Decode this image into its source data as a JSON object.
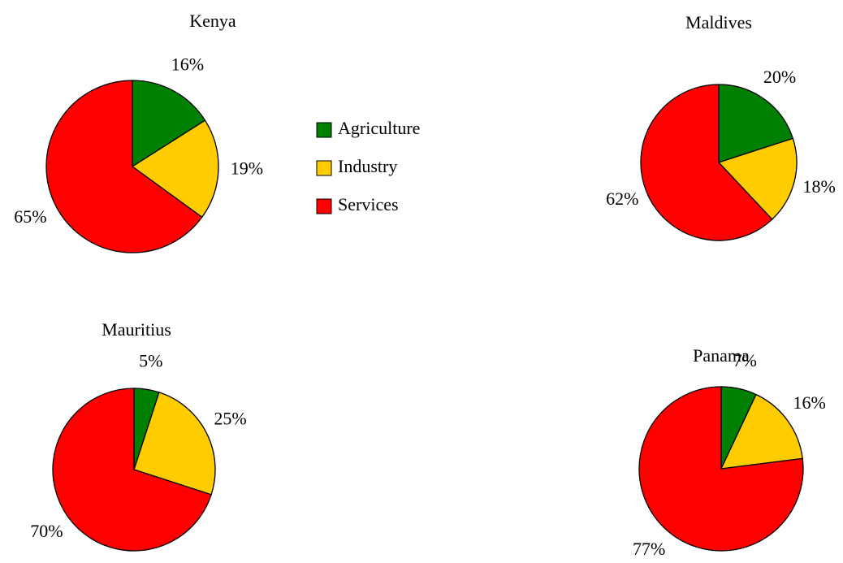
{
  "chart_data": [
    {
      "type": "pie",
      "title": "Kenya",
      "categories": [
        "Agriculture",
        "Industry",
        "Services"
      ],
      "values": [
        16,
        19,
        65
      ],
      "value_labels": [
        "16%",
        "19%",
        "65%"
      ],
      "colors": [
        "#008000",
        "#ffcc00",
        "#ff0000"
      ],
      "legend": true
    },
    {
      "type": "pie",
      "title": "Maldives",
      "categories": [
        "Agriculture",
        "Industry",
        "Services"
      ],
      "values": [
        20,
        18,
        62
      ],
      "value_labels": [
        "20%",
        "18%",
        "62%"
      ],
      "colors": [
        "#008000",
        "#ffcc00",
        "#ff0000"
      ]
    },
    {
      "type": "pie",
      "title": "Mauritius",
      "categories": [
        "Agriculture",
        "Industry",
        "Services"
      ],
      "values": [
        5,
        25,
        70
      ],
      "value_labels": [
        "5%",
        "25%",
        "70%"
      ],
      "colors": [
        "#008000",
        "#ffcc00",
        "#ff0000"
      ]
    },
    {
      "type": "pie",
      "title": "Panama",
      "categories": [
        "Agriculture",
        "Industry",
        "Services"
      ],
      "values": [
        7,
        16,
        77
      ],
      "value_labels": [
        "7%",
        "16%",
        "77%"
      ],
      "colors": [
        "#008000",
        "#ffcc00",
        "#ff0000"
      ]
    }
  ]
}
